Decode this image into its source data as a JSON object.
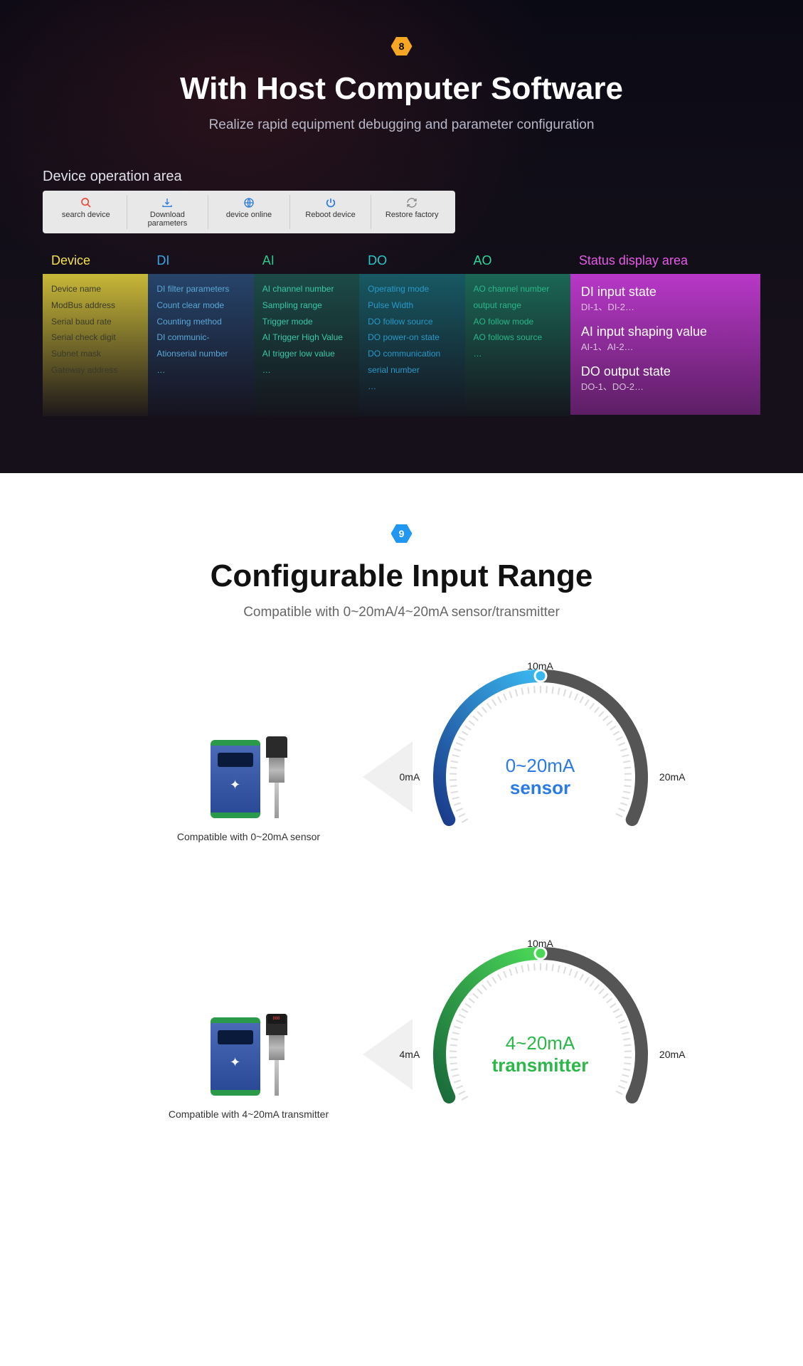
{
  "section8": {
    "badge_num": "8",
    "title": "With Host Computer Software",
    "subtitle": "Realize rapid equipment debugging and parameter configuration",
    "op_label": "Device operation area",
    "toolbar": [
      {
        "icon": "search",
        "color": "#e84a3a",
        "label": "search device"
      },
      {
        "icon": "download",
        "color": "#2a7ae0",
        "label": "Download parameters"
      },
      {
        "icon": "globe",
        "color": "#2a7ae0",
        "label": "device online"
      },
      {
        "icon": "power",
        "color": "#2a7ae0",
        "label": "Reboot device"
      },
      {
        "icon": "refresh",
        "color": "#888",
        "label": "Restore factory"
      }
    ],
    "columns": [
      {
        "head": "Device",
        "head_color": "#f5e050",
        "body_bg": "linear-gradient(to bottom, #c8b838, rgba(100,90,30,0.1))",
        "text_color": "#3a3a2a",
        "items": [
          "Device name",
          "ModBus address",
          "Serial baud rate",
          "Serial check digit",
          "Subnet mask",
          "Gateway address",
          "…"
        ]
      },
      {
        "head": "DI",
        "head_color": "#3aa8e8",
        "body_bg": "linear-gradient(to bottom, rgba(45,90,140,0.7), rgba(30,45,70,0.1))",
        "text_color": "#5aa8d8",
        "items": [
          "DI filter parameters",
          "Count clear mode",
          "Counting method",
          "DI communic-",
          "Ationserial number",
          "…"
        ]
      },
      {
        "head": "AI",
        "head_color": "#2ac888",
        "body_bg": "linear-gradient(to bottom, rgba(30,100,90,0.7), rgba(20,60,55,0.1))",
        "text_color": "#3ac8a8",
        "items": [
          "AI channel number",
          "Sampling range",
          "Trigger mode",
          "AI Trigger High Value",
          "AI trigger low value",
          "…"
        ]
      },
      {
        "head": "DO",
        "head_color": "#2ac8c8",
        "body_bg": "linear-gradient(to bottom, rgba(25,120,130,0.7), rgba(18,70,75,0.1))",
        "text_color": "#2a98c8",
        "items": [
          "Operating mode",
          "Pulse Width",
          "DO follow source",
          "DO power-on state",
          "DO communication",
          "serial number",
          "…"
        ]
      },
      {
        "head": "AO",
        "head_color": "#2ad898",
        "body_bg": "linear-gradient(to bottom, rgba(30,140,110,0.7), rgba(20,80,65,0.1))",
        "text_color": "#2ab888",
        "items": [
          "AO channel number",
          "output range",
          "AO follow mode",
          "AO follows source",
          "…"
        ]
      }
    ],
    "status": {
      "head": "Status display area",
      "head_color": "#e858e8",
      "body_bg": "linear-gradient(to bottom, #b838c8, rgba(140,40,150,0.6))",
      "items": [
        {
          "title": "DI input state",
          "sub": "DI-1、DI-2…"
        },
        {
          "title": "AI input shaping value",
          "sub": "AI-1、AI-2…"
        },
        {
          "title": "DO output state",
          "sub": "DO-1、DO-2…"
        }
      ]
    }
  },
  "section9": {
    "badge_num": "9",
    "title": "Configurable Input Range",
    "subtitle": "Compatible with 0~20mA/4~20mA sensor/transmitter",
    "gauges": [
      {
        "caption": "Compatible with 0~20mA sensor",
        "sensor_type": "plain",
        "center_top": "0~20mA",
        "center_bot": "sensor",
        "center_color": "#2a7ae8",
        "top_label": "10mA",
        "left_label": "0mA",
        "right_label": "20mA",
        "arc_color_start": "#1a3a8a",
        "arc_color_end": "#3ab8f0",
        "marker_color": "#3ab8f0"
      },
      {
        "caption": "Compatible with 4~20mA transmitter",
        "sensor_type": "display",
        "center_top": "4~20mA",
        "center_bot": "transmitter",
        "center_color": "#2ab848",
        "top_label": "10mA",
        "left_label": "4mA",
        "right_label": "20mA",
        "arc_color_start": "#1a6a3a",
        "arc_color_end": "#4ad858",
        "marker_color": "#4ad858"
      }
    ]
  }
}
